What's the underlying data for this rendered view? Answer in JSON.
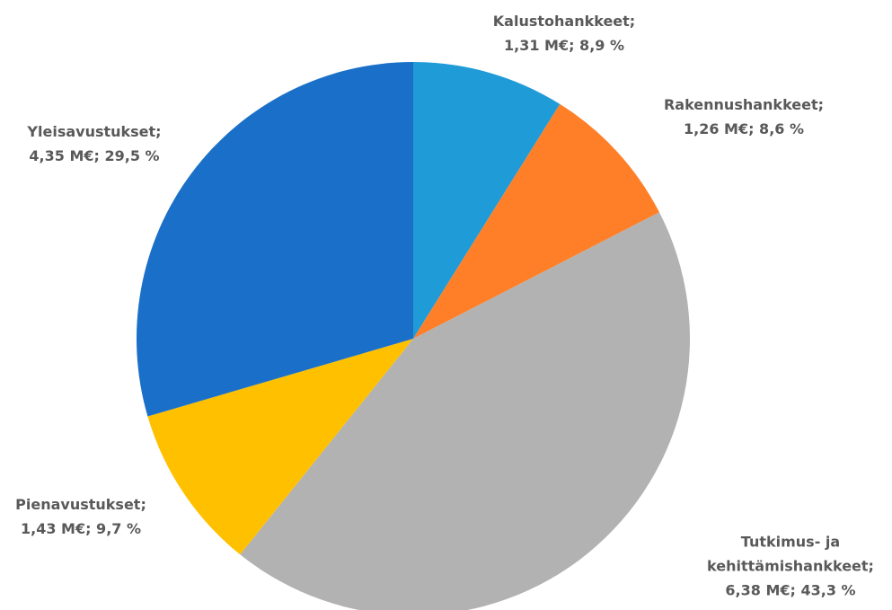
{
  "chart_data": {
    "type": "pie",
    "categories": [
      "Kalustohankkeet;",
      "Rakennushankkeet;",
      "Tutkimus- ja kehittämishankkeet;",
      "Pienavustukset;",
      "Yleisavustukset;"
    ],
    "values": [
      1.31,
      1.26,
      6.38,
      1.43,
      4.35
    ],
    "value_labels": [
      "1,31 M€; 8,9 %",
      "1,26 M€; 8,6 %",
      "6,38 M€; 43,3 %",
      "1,43 M€; 9,7 %",
      "4,35 M€; 29,5 %"
    ],
    "colors": [
      "#1f9bd7",
      "#fe7f27",
      "#b2b2b2",
      "#ffc000",
      "#1a70c8"
    ]
  }
}
